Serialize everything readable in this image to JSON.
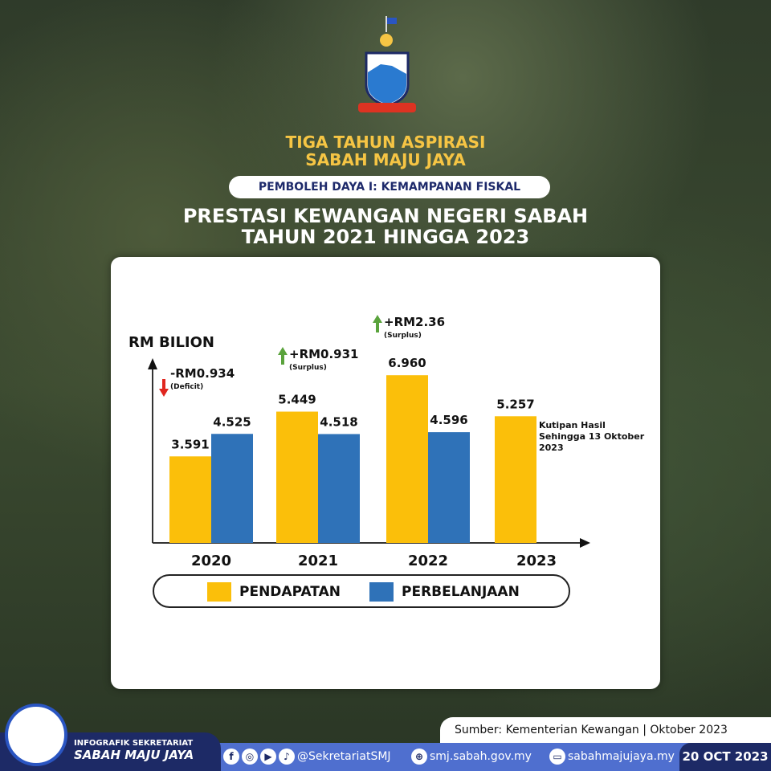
{
  "header": {
    "line1": "TIGA TAHUN ASPIRASI",
    "line2": "SABAH MAJU JAYA",
    "pill": "PEMBOLEH DAYA I: KEMAMPANAN FISKAL",
    "title1": "PRESTASI KEWANGAN NEGERI SABAH",
    "title2": "TAHUN 2021 HINGGA 2023",
    "emblem_text": "SABAH MAJU JAYA"
  },
  "chart_data": {
    "type": "bar",
    "ylabel": "RM BILION",
    "categories": [
      "2020",
      "2021",
      "2022",
      "2023"
    ],
    "series": [
      {
        "name": "PENDAPATAN",
        "color": "#fbbf0a",
        "values": [
          3.591,
          5.449,
          6.96,
          5.257
        ],
        "labels": [
          "3.591",
          "5.449",
          "6.960",
          "5.257"
        ]
      },
      {
        "name": "PERBELANJAAN",
        "color": "#2f72b8",
        "values": [
          4.525,
          4.518,
          4.596,
          null
        ],
        "labels": [
          "4.525",
          "4.518",
          "4.596",
          ""
        ]
      }
    ],
    "annotations": [
      {
        "year": "2020",
        "value": "-RM0.934",
        "note": "(Deficit)",
        "direction": "down"
      },
      {
        "year": "2021",
        "value": "+RM0.931",
        "note": "(Surplus)",
        "direction": "up"
      },
      {
        "year": "2022",
        "value": "+RM2.36",
        "note": "(Surplus)",
        "direction": "up"
      }
    ],
    "note_2023": [
      "Kutipan Hasil",
      "Sehingga 13 Oktober",
      "2023"
    ]
  },
  "footer": {
    "source": "Sumber: Kementerian Kewangan  |  Oktober 2023",
    "brand1": "INFOGRAFIK SEKRETARIAT",
    "brand2": "SABAH MAJU JAYA",
    "social": "@SekretariatSMJ",
    "site1": "smj.sabah.gov.my",
    "site2": "sabahmajujaya.my",
    "date": "20 OCT 2023"
  }
}
